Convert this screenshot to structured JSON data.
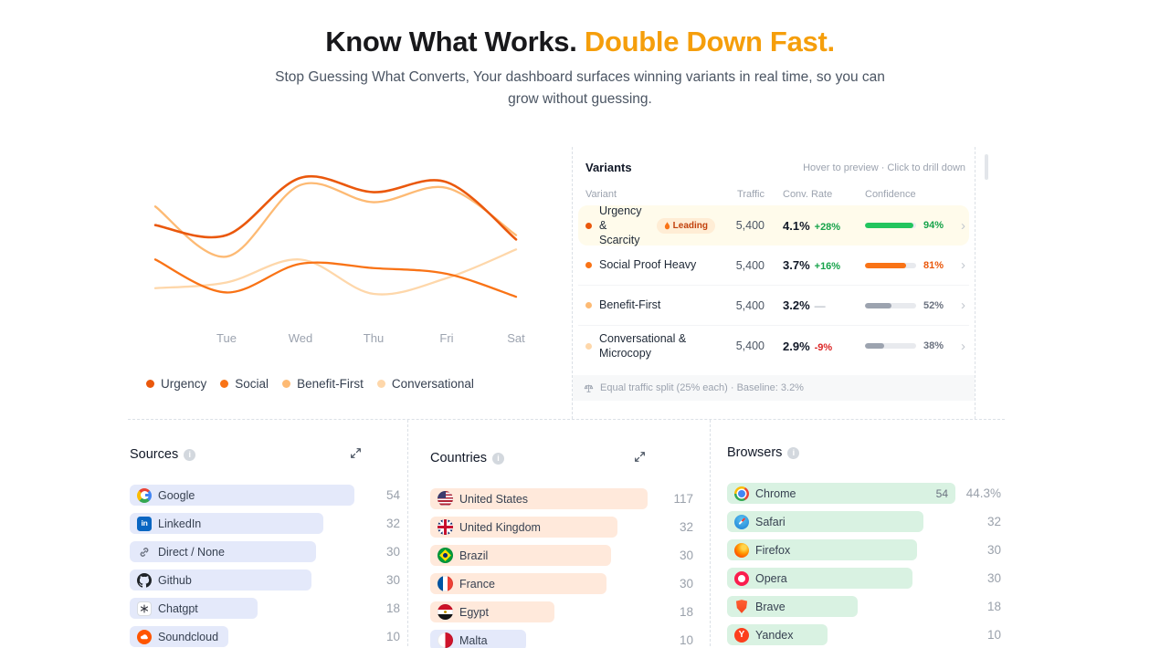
{
  "header": {
    "title_primary": "Know What Works.",
    "title_accent": "Double Down Fast.",
    "subtitle": "Stop Guessing What Converts, Your dashboard surfaces winning variants in real time, so you can grow without guessing."
  },
  "accent_color": "#f59e0b",
  "chart_data": {
    "type": "line",
    "x_labels": [
      "",
      "Tue",
      "Wed",
      "Thu",
      "Fri",
      "Sat"
    ],
    "ylim": [
      0,
      100
    ],
    "grid": false,
    "legend_position": "bottom",
    "series": [
      {
        "name": "Urgency",
        "color": "#ea580c",
        "values": [
          62,
          55,
          95,
          85,
          92,
          52
        ]
      },
      {
        "name": "Social",
        "color": "#f97316",
        "values": [
          38,
          15,
          35,
          32,
          28,
          12
        ]
      },
      {
        "name": "Benefit-First",
        "color": "#fdba74",
        "values": [
          75,
          40,
          90,
          78,
          88,
          55
        ]
      },
      {
        "name": "Conversational",
        "color": "#fed7aa",
        "values": [
          18,
          22,
          38,
          14,
          25,
          45
        ]
      }
    ]
  },
  "variants": {
    "title": "Variants",
    "hint": "Hover to preview · Click to drill down",
    "columns": [
      "Variant",
      "Traffic",
      "Conv. Rate",
      "Confidence"
    ],
    "rows": [
      {
        "name": "Urgency & Scarcity",
        "dot_color": "#ea580c",
        "badge": "Leading",
        "traffic": "5,400",
        "rate": "4.1%",
        "delta": "+28%",
        "delta_type": "up",
        "confidence": 94,
        "bar_color": "#22c55e",
        "pct_color": "#16a34a",
        "highlighted": true
      },
      {
        "name": "Social Proof Heavy",
        "dot_color": "#f97316",
        "traffic": "5,400",
        "rate": "3.7%",
        "delta": "+16%",
        "delta_type": "up",
        "confidence": 81,
        "bar_color": "#f97316",
        "pct_color": "#ea580c",
        "highlighted": false
      },
      {
        "name": "Benefit-First",
        "dot_color": "#fdba74",
        "traffic": "5,400",
        "rate": "3.2%",
        "delta": "—",
        "delta_type": "flat",
        "confidence": 52,
        "bar_color": "#9ca3af",
        "pct_color": "#6b7280",
        "highlighted": false
      },
      {
        "name": "Conversational & Microcopy",
        "dot_color": "#fed7aa",
        "traffic": "5,400",
        "rate": "2.9%",
        "delta": "-9%",
        "delta_type": "down",
        "confidence": 38,
        "bar_color": "#9ca3af",
        "pct_color": "#6b7280",
        "highlighted": false
      }
    ],
    "footer": "Equal traffic split (25% each) · Baseline: 3.2%"
  },
  "cards": {
    "sources": {
      "title": "Sources",
      "bar_color": "#e4e9fa",
      "items": [
        {
          "label": "Google",
          "value": 54,
          "icon": "google"
        },
        {
          "label": "LinkedIn",
          "value": 32,
          "icon": "linkedin"
        },
        {
          "label": "Direct / None",
          "value": 30,
          "icon": "link"
        },
        {
          "label": "Github",
          "value": 30,
          "icon": "github"
        },
        {
          "label": "Chatgpt",
          "value": 18,
          "icon": "chatgpt"
        },
        {
          "label": "Soundcloud",
          "value": 10,
          "icon": "soundcloud"
        }
      ]
    },
    "countries": {
      "title": "Countries",
      "bar_color": "#ffe9db",
      "items": [
        {
          "label": "United States",
          "value": 117,
          "icon": "flag-us"
        },
        {
          "label": "United Kingdom",
          "value": 32,
          "icon": "flag-uk"
        },
        {
          "label": "Brazil",
          "value": 30,
          "icon": "flag-br"
        },
        {
          "label": "France",
          "value": 30,
          "icon": "flag-fr"
        },
        {
          "label": "Egypt",
          "value": 18,
          "icon": "flag-eg"
        },
        {
          "label": "Malta",
          "value": 10,
          "icon": "flag-mt",
          "bar_color": "#e4e9fa"
        }
      ]
    },
    "browsers": {
      "title": "Browsers",
      "bar_color": "#d9f2e2",
      "items": [
        {
          "label": "Chrome",
          "value": 54,
          "icon": "chrome",
          "inline_value": "54",
          "right_text": "44.3%"
        },
        {
          "label": "Safari",
          "value": 32,
          "icon": "safari"
        },
        {
          "label": "Firefox",
          "value": 30,
          "icon": "firefox"
        },
        {
          "label": "Opera",
          "value": 30,
          "icon": "opera"
        },
        {
          "label": "Brave",
          "value": 18,
          "icon": "brave"
        },
        {
          "label": "Yandex",
          "value": 10,
          "icon": "yandex"
        }
      ]
    }
  }
}
